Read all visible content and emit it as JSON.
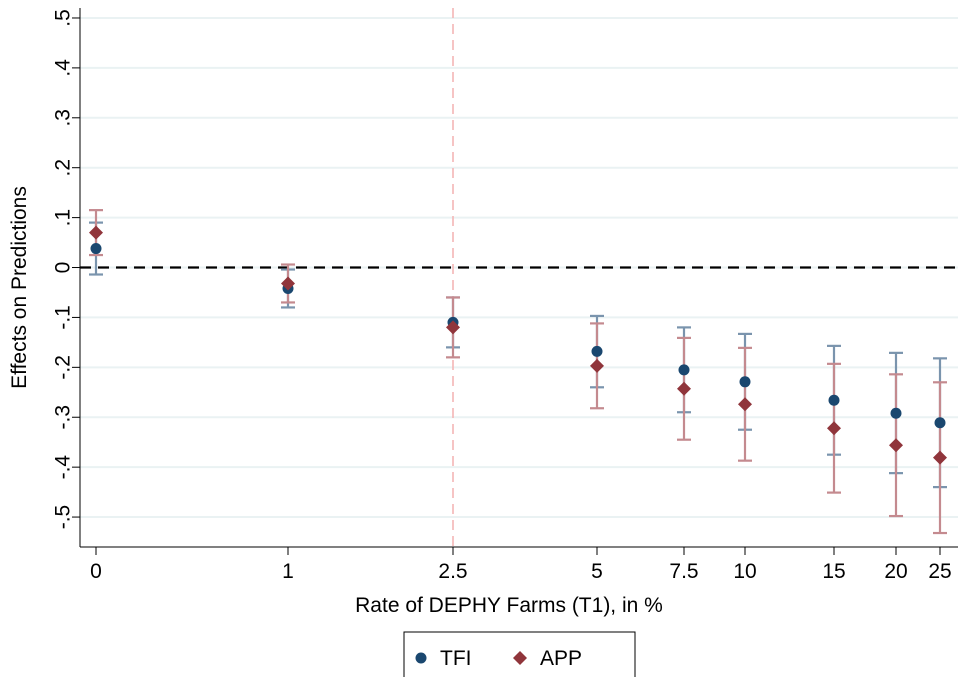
{
  "chart_data": {
    "type": "scatter",
    "xlabel": "Rate of DEPHY Farms (T1), in %",
    "ylabel": "Effects on Predictions",
    "categories": [
      "0",
      "1",
      "2.5",
      "5",
      "7.5",
      "10",
      "15",
      "20",
      "25"
    ],
    "y_ticks": [
      ".5",
      ".4",
      ".3",
      ".2",
      ".1",
      "0",
      "-.1",
      "-.2",
      "-.3",
      "-.4",
      "-.5"
    ],
    "ylim": [
      -0.56,
      0.52
    ],
    "grid": "horizontal",
    "reference_lines": {
      "y": 0,
      "x_category": "2.5"
    },
    "legend_position": "bottom",
    "series": [
      {
        "name": "TFI",
        "marker": "circle",
        "color": "#1a476f",
        "ci_color": "#7a94ad",
        "values": [
          0.038,
          -0.042,
          -0.11,
          -0.168,
          -0.205,
          -0.229,
          -0.266,
          -0.292,
          -0.311
        ],
        "ci_low": [
          -0.014,
          -0.08,
          -0.16,
          -0.24,
          -0.29,
          -0.325,
          -0.375,
          -0.412,
          -0.44
        ],
        "ci_high": [
          0.09,
          -0.004,
          -0.06,
          -0.097,
          -0.12,
          -0.133,
          -0.157,
          -0.171,
          -0.182
        ]
      },
      {
        "name": "APP",
        "marker": "diamond",
        "color": "#90353b",
        "ci_color": "#c48a8f",
        "values": [
          0.07,
          -0.032,
          -0.12,
          -0.197,
          -0.243,
          -0.274,
          -0.322,
          -0.356,
          -0.381
        ],
        "ci_low": [
          0.025,
          -0.07,
          -0.18,
          -0.282,
          -0.345,
          -0.387,
          -0.451,
          -0.498,
          -0.532
        ],
        "ci_high": [
          0.115,
          0.006,
          -0.06,
          -0.112,
          -0.141,
          -0.161,
          -0.193,
          -0.214,
          -0.23
        ]
      }
    ]
  }
}
